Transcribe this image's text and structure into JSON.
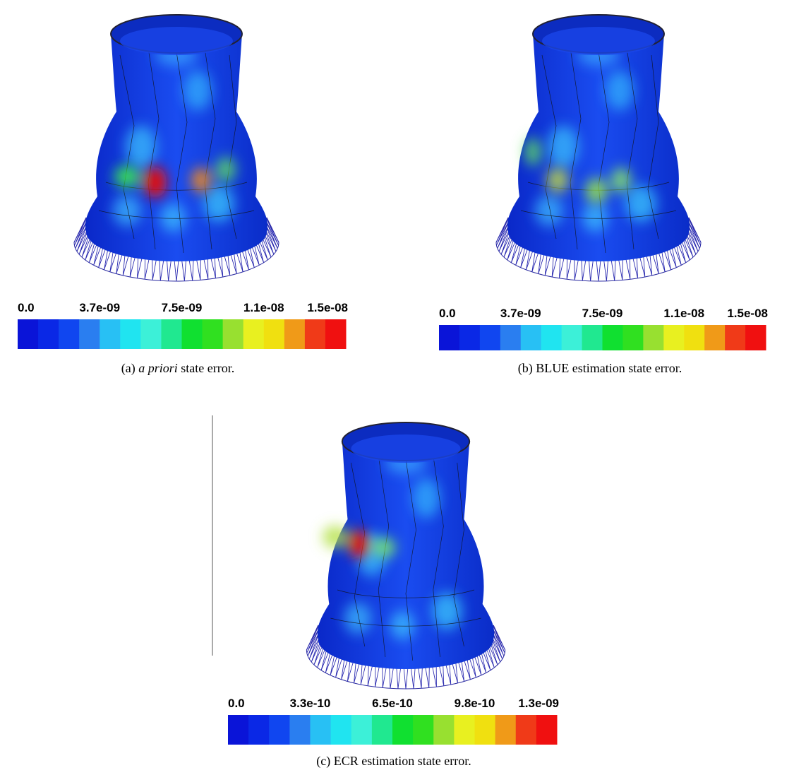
{
  "panels": [
    {
      "colorbar_labels": [
        "0.0",
        "3.7e-09",
        "7.5e-09",
        "1.1e-08",
        "1.5e-08"
      ],
      "caption": {
        "label": "(a)",
        "emphasis": "a priori",
        "text": "state error."
      }
    },
    {
      "colorbar_labels": [
        "0.0",
        "3.7e-09",
        "7.5e-09",
        "1.1e-08",
        "1.5e-08"
      ],
      "caption": {
        "label": "(b)",
        "text": "BLUE estimation state error."
      }
    },
    {
      "colorbar_labels": [
        "0.0",
        "3.3e-10",
        "6.5e-10",
        "9.8e-10",
        "1.3e-09"
      ],
      "caption": {
        "label": "(c)",
        "text": "ECR estimation state error."
      }
    }
  ]
}
